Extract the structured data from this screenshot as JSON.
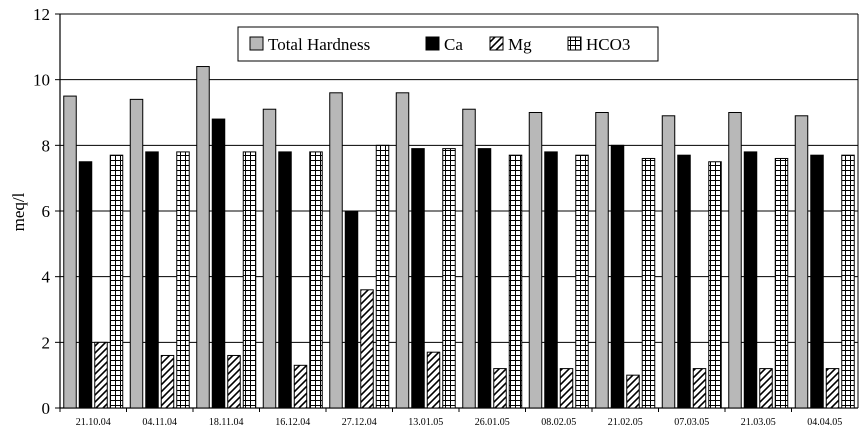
{
  "chart_data": {
    "type": "bar",
    "title": "",
    "xlabel": "",
    "ylabel": "meq/l",
    "ylim": [
      0,
      12
    ],
    "yticks": [
      0,
      2,
      4,
      6,
      8,
      10,
      12
    ],
    "grid": "horizontal",
    "legend_position": "top-center",
    "categories": [
      "21.10.04",
      "04.11.04",
      "18.11.04",
      "16.12.04",
      "27.12.04",
      "13.01.05",
      "26.01.05",
      "08.02.05",
      "21.02.05",
      "07.03.05",
      "21.03.05",
      "04.04.05"
    ],
    "series": [
      {
        "name": "Total Hardness",
        "pattern": "gray",
        "color": "#b8b8b8",
        "values": [
          9.5,
          9.4,
          10.4,
          9.1,
          9.6,
          9.6,
          9.1,
          9.0,
          9.0,
          8.9,
          9.0,
          8.9
        ]
      },
      {
        "name": "Ca",
        "pattern": "black",
        "color": "#000000",
        "values": [
          7.5,
          7.8,
          8.8,
          7.8,
          6.0,
          7.9,
          7.9,
          7.8,
          8.0,
          7.7,
          7.8,
          7.7
        ]
      },
      {
        "name": "Mg",
        "pattern": "diagonal-hatch",
        "color": "#000000",
        "values": [
          2.0,
          1.6,
          1.6,
          1.3,
          3.6,
          1.7,
          1.2,
          1.2,
          1.0,
          1.2,
          1.2,
          1.2
        ]
      },
      {
        "name": "HCO3",
        "pattern": "grid-hatch",
        "color": "#000000",
        "values": [
          7.7,
          7.8,
          7.8,
          7.8,
          8.0,
          7.9,
          7.7,
          7.7,
          7.6,
          7.5,
          7.6,
          7.7
        ]
      }
    ]
  }
}
